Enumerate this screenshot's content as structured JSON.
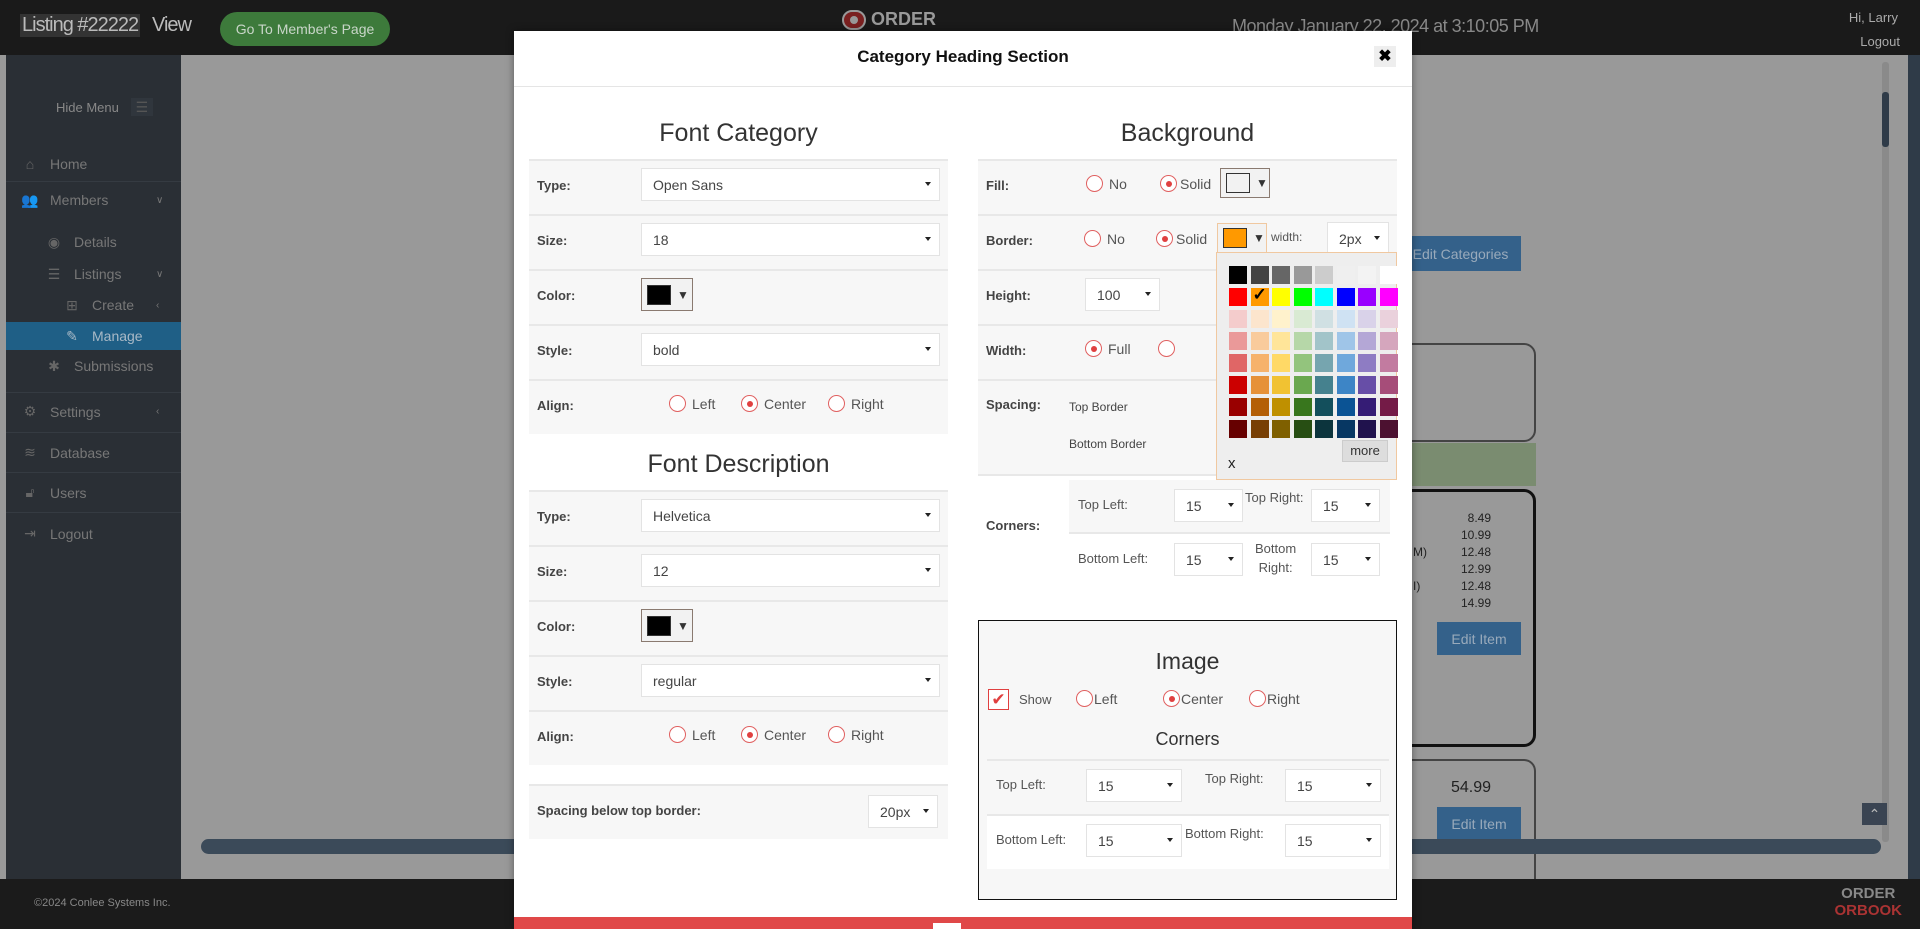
{
  "topbar": {
    "listing_title": "Listing #22222",
    "view_label": "View",
    "member_page_button": "Go To Member's Page",
    "logo_text": "ORDER",
    "datetime": "Monday January 22, 2024 at 3:10:05 PM",
    "greeting": "Hi, Larry",
    "logout": "Logout"
  },
  "sidebar": {
    "hide_menu": "Hide Menu",
    "items": [
      {
        "label": "Home",
        "icon": "home-icon"
      },
      {
        "label": "Members",
        "icon": "users-icon"
      },
      {
        "label": "Details",
        "icon": "eye-icon"
      },
      {
        "label": "Listings",
        "icon": "list-icon"
      },
      {
        "label": "Create",
        "icon": "plus-square-icon"
      },
      {
        "label": "Manage",
        "icon": "edit-icon",
        "active": true
      },
      {
        "label": "Submissions",
        "icon": "asterisk-icon"
      },
      {
        "label": "Settings",
        "icon": "cogs-icon"
      },
      {
        "label": "Database",
        "icon": "database-icon"
      },
      {
        "label": "Users",
        "icon": "unlock-icon"
      },
      {
        "label": "Logout",
        "icon": "sign-out-icon"
      }
    ]
  },
  "background_page": {
    "edit_categories": "Edit Categories",
    "prices": [
      "8.49",
      "10.99",
      "12.48",
      "12.99",
      "12.48",
      "14.99"
    ],
    "partial_texts": [
      "M)",
      "I)"
    ],
    "edit_item": "Edit Item",
    "price_2": "54.99"
  },
  "footer": {
    "copyright": "©2024 Conlee Systems Inc.",
    "logo_line1": "ORDER",
    "logo_line2": "ORBOOK"
  },
  "modal": {
    "title": "Category Heading Section",
    "close": "✖",
    "font_category": {
      "title": "Font Category",
      "type_label": "Type:",
      "type_value": "Open Sans",
      "size_label": "Size:",
      "size_value": "18",
      "color_label": "Color:",
      "color_value": "#000000",
      "style_label": "Style:",
      "style_value": "bold",
      "align_label": "Align:",
      "align_options": [
        "Left",
        "Center",
        "Right"
      ],
      "align_selected": "Center"
    },
    "font_description": {
      "title": "Font Description",
      "type_label": "Type:",
      "type_value": "Helvetica",
      "size_label": "Size:",
      "size_value": "12",
      "color_label": "Color:",
      "color_value": "#000000",
      "style_label": "Style:",
      "style_value": "regular",
      "align_label": "Align:",
      "align_options": [
        "Left",
        "Center",
        "Right"
      ],
      "align_selected": "Center"
    },
    "spacing_below": {
      "label": "Spacing below top border:",
      "value": "20px"
    },
    "background": {
      "title": "Background",
      "fill_label": "Fill:",
      "fill_no": "No",
      "fill_solid": "Solid",
      "fill_selected": "Solid",
      "fill_color": "#f2f2f2",
      "border_label": "Border:",
      "border_no": "No",
      "border_solid": "Solid",
      "border_selected": "Solid",
      "border_color": "#ff9900",
      "width_text": "width:",
      "border_width": "2px",
      "height_label": "Height:",
      "height_value": "100",
      "width_label": "Width:",
      "width_full": "Full",
      "width_selected": "Full",
      "spacing_label": "Spacing:",
      "top_border": "Top Border",
      "bottom_border": "Bottom Border",
      "corners_label": "Corners:",
      "top_left_label": "Top Left:",
      "top_left": "15",
      "top_right_label": "Top Right:",
      "top_right": "15",
      "bottom_left_label": "Bottom Left:",
      "bottom_left": "15",
      "bottom_right_label1": "Bottom",
      "bottom_right_label2": "Right:",
      "bottom_right": "15"
    },
    "palette": {
      "selected": "#ff9900",
      "clear": "x",
      "more": "more",
      "colors": [
        "#000000",
        "#434343",
        "#666666",
        "#999999",
        "#cccccc",
        "#efefef",
        "#f3f3f3",
        "#ffffff",
        "#ff0000",
        "#ff9900",
        "#ffff00",
        "#00ff00",
        "#00ffff",
        "#0000ff",
        "#9900ff",
        "#ff00ff",
        "#f4cccc",
        "#fce5cd",
        "#fff2cc",
        "#d9ead3",
        "#d0e0e3",
        "#cfe2f3",
        "#d9d2e9",
        "#ead1dc",
        "#ea9999",
        "#f9cb9c",
        "#ffe599",
        "#b6d7a8",
        "#a2c4c9",
        "#9fc5e8",
        "#b4a7d6",
        "#d5a6bd",
        "#e06666",
        "#f6b26b",
        "#ffd966",
        "#93c47d",
        "#76a5af",
        "#6fa8dc",
        "#8e7cc3",
        "#c27ba0",
        "#cc0000",
        "#e69138",
        "#f1c232",
        "#6aa84f",
        "#45818e",
        "#3d85c6",
        "#674ea7",
        "#a64d79",
        "#990000",
        "#b45f06",
        "#bf9000",
        "#38761d",
        "#134f5c",
        "#0b5394",
        "#351c75",
        "#741b47",
        "#660000",
        "#783f04",
        "#7f6000",
        "#274e13",
        "#0c343d",
        "#073763",
        "#20124d",
        "#4c1130"
      ]
    },
    "image": {
      "title": "Image",
      "show_label": "Show",
      "show_checked": true,
      "align_options": [
        "Left",
        "Center",
        "Right"
      ],
      "align_selected": "Center",
      "corners_title": "Corners",
      "top_left_label": "Top Left:",
      "top_left": "15",
      "top_right_label": "Top Right:",
      "top_right": "15",
      "bottom_left_label": "Bottom Left:",
      "bottom_left": "15",
      "bottom_right_label": "Bottom Right:",
      "bottom_right": "15"
    }
  },
  "colors": {
    "accent_red": "#e04848",
    "active_nav": "#1f5f86",
    "go_button": "#3d7a3b"
  }
}
